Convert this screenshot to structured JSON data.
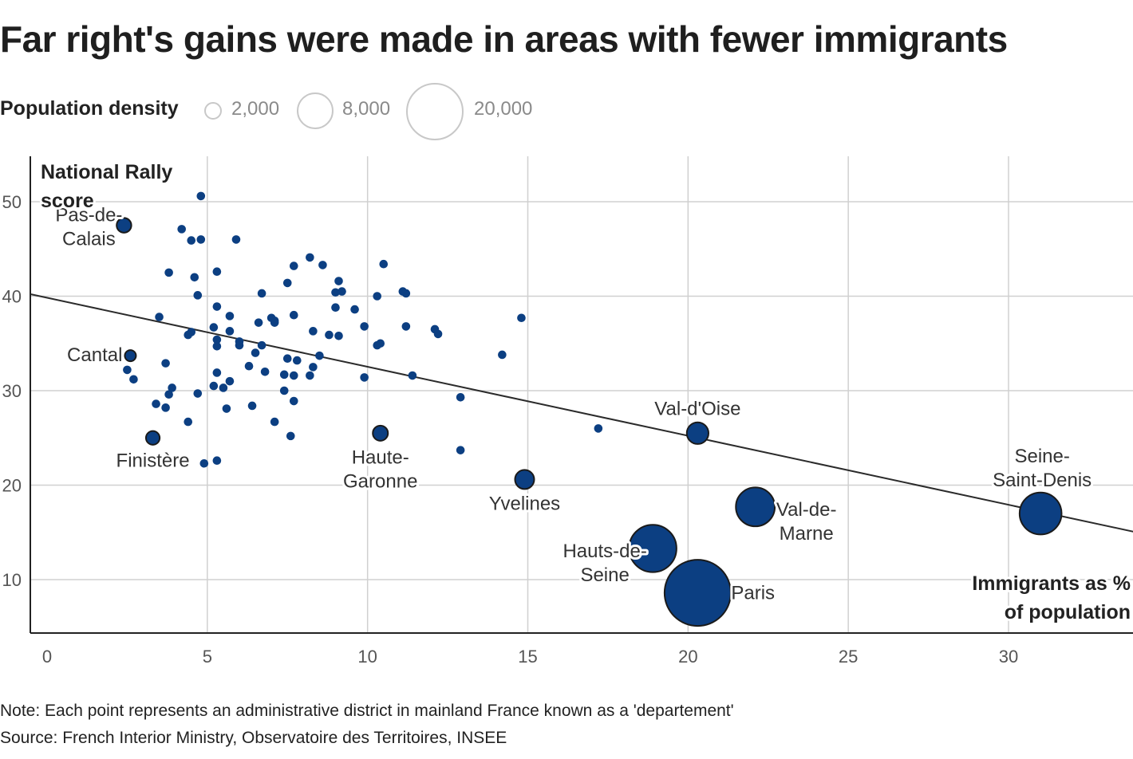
{
  "title": "Far right's gains were made in areas with fewer immigrants",
  "legend": {
    "title": "Population density",
    "sizes": [
      {
        "label": "2,000",
        "value": 2000
      },
      {
        "label": "8,000",
        "value": 8000
      },
      {
        "label": "20,000",
        "value": 20000
      }
    ]
  },
  "colors": {
    "dot": "#0c3f82",
    "grid": "#d0d0d0",
    "trend": "#2b2b2b"
  },
  "chart_data": {
    "type": "scatter",
    "title": "Far right's gains were made in areas with fewer immigrants",
    "xlabel": "Immigrants as % of population",
    "xlabel_lines": [
      "Immigrants as %",
      "of population"
    ],
    "ylabel": "National Rally score",
    "ylabel_lines": [
      "National Rally",
      "score"
    ],
    "xlim": [
      -0.5,
      34
    ],
    "ylim": [
      4.5,
      55
    ],
    "xticks": [
      0,
      5,
      10,
      15,
      20,
      25,
      30
    ],
    "yticks": [
      10,
      20,
      30,
      40,
      50
    ],
    "grid": true,
    "trendline": {
      "x": [
        -0.5,
        34
      ],
      "y": [
        40.2,
        15.0
      ]
    },
    "size_encoding": "population density",
    "labeled_points": [
      {
        "name": "Pas-de-Calais",
        "label_lines": [
          "Pas-de-",
          "Calais"
        ],
        "x": 2.4,
        "y": 47.5,
        "density": 200
      },
      {
        "name": "Cantal",
        "label_lines": [
          "Cantal"
        ],
        "x": 2.6,
        "y": 33.7,
        "density": 25
      },
      {
        "name": "Finistère",
        "label_lines": [
          "Finistère"
        ],
        "x": 3.3,
        "y": 25.0,
        "density": 135
      },
      {
        "name": "Haute-Garonne",
        "label_lines": [
          "Haute-",
          "Garonne"
        ],
        "x": 10.4,
        "y": 25.5,
        "density": 230
      },
      {
        "name": "Yvelines",
        "label_lines": [
          "Yvelines"
        ],
        "x": 14.9,
        "y": 20.6,
        "density": 630
      },
      {
        "name": "Val-d'Oise",
        "label_lines": [
          "Val-d'Oise"
        ],
        "x": 20.3,
        "y": 25.5,
        "density": 1000
      },
      {
        "name": "Hauts-de-Seine",
        "label_lines": [
          "Hauts-de-",
          "Seine"
        ],
        "x": 18.9,
        "y": 13.3,
        "density": 9200
      },
      {
        "name": "Paris",
        "label_lines": [
          "Paris"
        ],
        "x": 20.3,
        "y": 8.6,
        "density": 20500
      },
      {
        "name": "Val-de-Marne",
        "label_lines": [
          "Val-de-",
          "Marne"
        ],
        "x": 22.1,
        "y": 17.7,
        "density": 5600
      },
      {
        "name": "Seine-Saint-Denis",
        "label_lines": [
          "Seine-",
          "Saint-Denis"
        ],
        "x": 31.0,
        "y": 17.0,
        "density": 6800
      }
    ],
    "points": [
      {
        "x": 4.8,
        "y": 50.6
      },
      {
        "x": 4.2,
        "y": 47.1
      },
      {
        "x": 4.5,
        "y": 45.9
      },
      {
        "x": 4.8,
        "y": 46.0
      },
      {
        "x": 5.9,
        "y": 46.0
      },
      {
        "x": 3.8,
        "y": 42.5
      },
      {
        "x": 4.6,
        "y": 42.0
      },
      {
        "x": 5.3,
        "y": 42.6
      },
      {
        "x": 4.7,
        "y": 40.1
      },
      {
        "x": 5.3,
        "y": 38.9
      },
      {
        "x": 5.7,
        "y": 37.9
      },
      {
        "x": 3.5,
        "y": 37.8
      },
      {
        "x": 5.2,
        "y": 36.7
      },
      {
        "x": 4.5,
        "y": 36.2
      },
      {
        "x": 4.4,
        "y": 35.9
      },
      {
        "x": 5.7,
        "y": 36.3
      },
      {
        "x": 5.3,
        "y": 35.4
      },
      {
        "x": 5.3,
        "y": 34.7
      },
      {
        "x": 6.0,
        "y": 35.2
      },
      {
        "x": 6.0,
        "y": 34.8
      },
      {
        "x": 6.5,
        "y": 34.0
      },
      {
        "x": 6.7,
        "y": 34.8
      },
      {
        "x": 3.7,
        "y": 32.9
      },
      {
        "x": 2.5,
        "y": 32.2
      },
      {
        "x": 2.7,
        "y": 31.2
      },
      {
        "x": 5.3,
        "y": 31.9
      },
      {
        "x": 5.7,
        "y": 31.0
      },
      {
        "x": 6.3,
        "y": 32.6
      },
      {
        "x": 5.2,
        "y": 30.5
      },
      {
        "x": 5.5,
        "y": 30.3
      },
      {
        "x": 3.9,
        "y": 30.3
      },
      {
        "x": 3.8,
        "y": 29.6
      },
      {
        "x": 4.7,
        "y": 29.7
      },
      {
        "x": 3.4,
        "y": 28.6
      },
      {
        "x": 3.7,
        "y": 28.2
      },
      {
        "x": 5.6,
        "y": 28.1
      },
      {
        "x": 6.4,
        "y": 28.4
      },
      {
        "x": 4.4,
        "y": 26.7
      },
      {
        "x": 4.9,
        "y": 22.3
      },
      {
        "x": 5.3,
        "y": 22.6
      },
      {
        "x": 6.7,
        "y": 40.3
      },
      {
        "x": 6.6,
        "y": 37.2
      },
      {
        "x": 7.0,
        "y": 37.7
      },
      {
        "x": 7.1,
        "y": 37.4
      },
      {
        "x": 7.1,
        "y": 37.2
      },
      {
        "x": 7.7,
        "y": 38.0
      },
      {
        "x": 7.5,
        "y": 41.4
      },
      {
        "x": 7.7,
        "y": 43.2
      },
      {
        "x": 8.2,
        "y": 44.1
      },
      {
        "x": 8.6,
        "y": 43.3
      },
      {
        "x": 8.3,
        "y": 36.3
      },
      {
        "x": 9.0,
        "y": 38.8
      },
      {
        "x": 8.8,
        "y": 35.9
      },
      {
        "x": 9.1,
        "y": 35.8
      },
      {
        "x": 9.0,
        "y": 40.4
      },
      {
        "x": 9.2,
        "y": 40.5
      },
      {
        "x": 9.1,
        "y": 41.6
      },
      {
        "x": 9.6,
        "y": 38.6
      },
      {
        "x": 9.9,
        "y": 36.8
      },
      {
        "x": 8.5,
        "y": 33.7
      },
      {
        "x": 8.3,
        "y": 32.5
      },
      {
        "x": 7.5,
        "y": 33.4
      },
      {
        "x": 7.8,
        "y": 33.2
      },
      {
        "x": 7.4,
        "y": 31.7
      },
      {
        "x": 7.7,
        "y": 31.6
      },
      {
        "x": 8.2,
        "y": 31.6
      },
      {
        "x": 6.8,
        "y": 32.0
      },
      {
        "x": 7.4,
        "y": 30.0
      },
      {
        "x": 7.7,
        "y": 28.9
      },
      {
        "x": 7.1,
        "y": 26.7
      },
      {
        "x": 7.6,
        "y": 25.2
      },
      {
        "x": 9.9,
        "y": 31.4
      },
      {
        "x": 10.3,
        "y": 34.8
      },
      {
        "x": 10.4,
        "y": 35.0
      },
      {
        "x": 10.3,
        "y": 40.0
      },
      {
        "x": 10.5,
        "y": 43.4
      },
      {
        "x": 11.1,
        "y": 40.5
      },
      {
        "x": 11.2,
        "y": 40.3
      },
      {
        "x": 11.2,
        "y": 36.8
      },
      {
        "x": 11.4,
        "y": 31.6
      },
      {
        "x": 12.1,
        "y": 36.5
      },
      {
        "x": 12.2,
        "y": 36.0
      },
      {
        "x": 12.9,
        "y": 29.3
      },
      {
        "x": 12.9,
        "y": 23.7
      },
      {
        "x": 14.2,
        "y": 33.8
      },
      {
        "x": 14.8,
        "y": 37.7
      },
      {
        "x": 17.2,
        "y": 26.0
      }
    ]
  },
  "footer": {
    "note": "Note: Each point represents an administrative district in mainland France known as a 'departement'",
    "source": "Source: French Interior Ministry, Observatoire des Territoires, INSEE"
  }
}
